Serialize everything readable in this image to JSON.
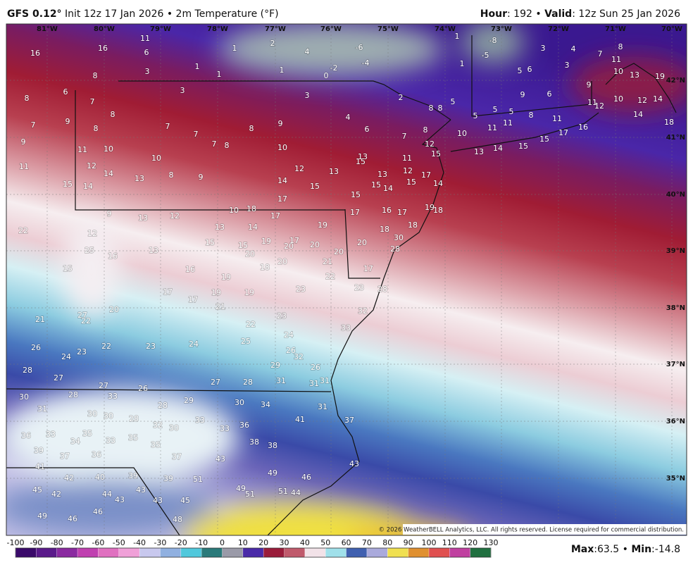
{
  "header": {
    "model": "GFS 0.12°",
    "init": "Init 12z 17 Jan 2026 • 2m Temperature (°F)",
    "hour_label": "Hour",
    "hour_text": ": 192 •",
    "valid_label": "Valid",
    "valid_text": ": 12z Sun 25 Jan 2026"
  },
  "map": {
    "lon_labels": [
      "81°W",
      "80°W",
      "79°W",
      "78°W",
      "77°W",
      "76°W",
      "75°W",
      "74°W",
      "73°W",
      "72°W",
      "71°W",
      "70°W"
    ],
    "lat_labels": [
      "42°N",
      "41°N",
      "40°N",
      "39°N",
      "38°N",
      "37°N",
      "36°N",
      "35°N"
    ],
    "temperature_labels": [
      16,
      16,
      11,
      6,
      8,
      3,
      1,
      1,
      1,
      2,
      4,
      -6,
      -4,
      -2,
      0,
      1,
      1,
      -8,
      -5,
      1,
      3,
      4,
      7,
      8,
      11,
      5,
      6,
      3,
      10,
      13,
      19,
      8,
      6,
      7,
      8,
      3,
      3,
      2,
      8,
      8,
      5,
      5,
      5,
      5,
      9,
      6,
      9,
      11,
      12,
      10,
      12,
      14,
      14,
      18,
      7,
      9,
      9,
      8,
      7,
      7,
      8,
      9,
      4,
      6,
      7,
      8,
      10,
      11,
      11,
      8,
      11,
      16,
      17,
      15,
      15,
      14,
      13,
      7,
      8,
      10,
      11,
      10,
      10,
      11,
      12,
      14,
      13,
      8,
      9,
      13,
      15,
      11,
      12,
      15,
      12,
      13,
      13,
      12,
      15,
      17,
      14,
      15,
      14,
      14,
      15,
      15,
      15,
      14,
      17,
      9,
      13,
      12,
      10,
      18,
      17,
      16,
      17,
      19,
      18,
      22,
      12,
      13,
      14,
      17,
      19,
      18,
      18,
      30,
      25,
      16,
      13,
      15,
      15,
      19,
      20,
      17,
      20,
      20,
      20,
      20,
      28,
      15,
      16,
      19,
      18,
      20,
      21,
      22,
      17,
      17,
      17,
      19,
      19,
      23,
      23,
      28,
      27,
      22,
      20,
      21,
      23,
      32,
      21,
      22,
      24,
      33,
      26,
      24,
      23,
      22,
      23,
      24,
      25,
      26,
      32,
      28,
      27,
      27,
      26,
      29,
      26,
      27,
      28,
      31,
      31,
      31,
      30,
      28,
      33,
      31,
      30,
      30,
      28,
      28,
      29,
      30,
      34,
      31,
      32,
      30,
      33,
      33,
      36,
      41,
      37,
      36,
      33,
      35,
      34,
      33,
      35,
      35,
      38,
      38,
      39,
      37,
      36,
      37,
      43,
      41,
      42,
      40,
      39,
      39,
      51,
      43,
      49,
      46,
      45,
      42,
      43,
      49,
      51,
      44,
      44,
      43,
      43,
      45,
      51,
      49,
      46,
      46,
      48
    ],
    "copyright": "© 2026 WeatherBELL Analytics, LLC. All rights reserved. License required for commercial distribution."
  },
  "colorbar": {
    "ticks": [
      -100,
      -90,
      -80,
      -70,
      -60,
      -50,
      -40,
      -30,
      -20,
      -10,
      0,
      10,
      20,
      30,
      40,
      50,
      60,
      70,
      80,
      90,
      100,
      110,
      120,
      130
    ]
  },
  "footer": {
    "max_label": "Max",
    "max_sep": ":",
    "max": 63.5,
    "sep": "•",
    "min_label": "Min",
    "min_sep": ":",
    "min": -14.8
  }
}
